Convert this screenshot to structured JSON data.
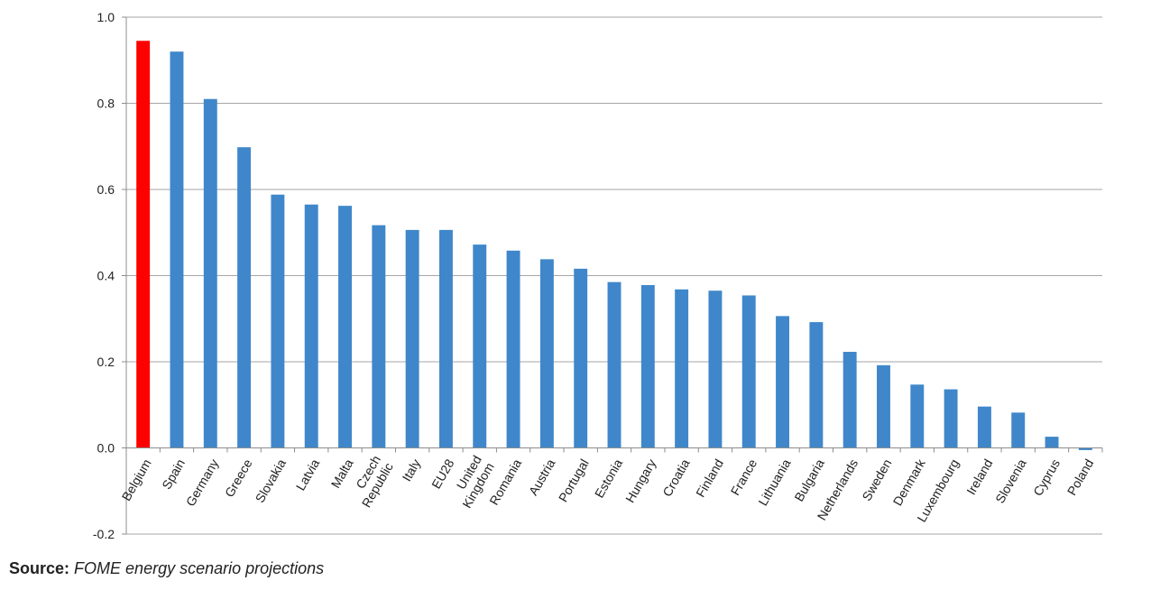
{
  "chart_data": {
    "type": "bar",
    "categories": [
      "Belgium",
      "Spain",
      "Germany",
      "Greece",
      "Slovakia",
      "Latvia",
      "Malta",
      "Czech Republic",
      "Italy",
      "EU28",
      "United Kingdom",
      "Romania",
      "Austria",
      "Portugal",
      "Estonia",
      "Hungary",
      "Croatia",
      "Finland",
      "France",
      "Lithuania",
      "Bulgaria",
      "Netherlands",
      "Sweden",
      "Denmark",
      "Luxembourg",
      "Ireland",
      "Slovenia",
      "Cyprus",
      "Poland"
    ],
    "category_lines": [
      [
        "Belgium"
      ],
      [
        "Spain"
      ],
      [
        "Germany"
      ],
      [
        "Greece"
      ],
      [
        "Slovakia"
      ],
      [
        "Latvia"
      ],
      [
        "Malta"
      ],
      [
        "Czech",
        "Republic"
      ],
      [
        "Italy"
      ],
      [
        "EU28"
      ],
      [
        "United",
        "Kingdom"
      ],
      [
        "Romania"
      ],
      [
        "Austria"
      ],
      [
        "Portugal"
      ],
      [
        "Estonia"
      ],
      [
        "Hungary"
      ],
      [
        "Croatia"
      ],
      [
        "Finland"
      ],
      [
        "France"
      ],
      [
        "Lithuania"
      ],
      [
        "Bulgaria"
      ],
      [
        "Netherlands"
      ],
      [
        "Sweden"
      ],
      [
        "Denmark"
      ],
      [
        "Luxembourg"
      ],
      [
        "Ireland"
      ],
      [
        "Slovenia"
      ],
      [
        "Cyprus"
      ],
      [
        "Poland"
      ]
    ],
    "values": [
      0.945,
      0.92,
      0.81,
      0.698,
      0.588,
      0.565,
      0.562,
      0.517,
      0.506,
      0.506,
      0.472,
      0.458,
      0.438,
      0.416,
      0.385,
      0.378,
      0.368,
      0.365,
      0.354,
      0.306,
      0.292,
      0.223,
      0.192,
      0.147,
      0.136,
      0.096,
      0.082,
      0.026,
      -0.005
    ],
    "highlight": {
      "category": "Belgium",
      "color": "#ff0000"
    },
    "bar_color": "#3f87ca",
    "ylim": [
      -0.2,
      1.0
    ],
    "yticks": [
      -0.2,
      0.0,
      0.2,
      0.4,
      0.6,
      0.8,
      1.0
    ],
    "ytick_labels": [
      "-0.2",
      "0.0",
      "0.2",
      "0.4",
      "0.6",
      "0.8",
      "1.0"
    ],
    "grid": true,
    "title": "",
    "xlabel": "",
    "ylabel": ""
  },
  "source": {
    "label": "Source:",
    "text": "FOME energy scenario projections"
  }
}
